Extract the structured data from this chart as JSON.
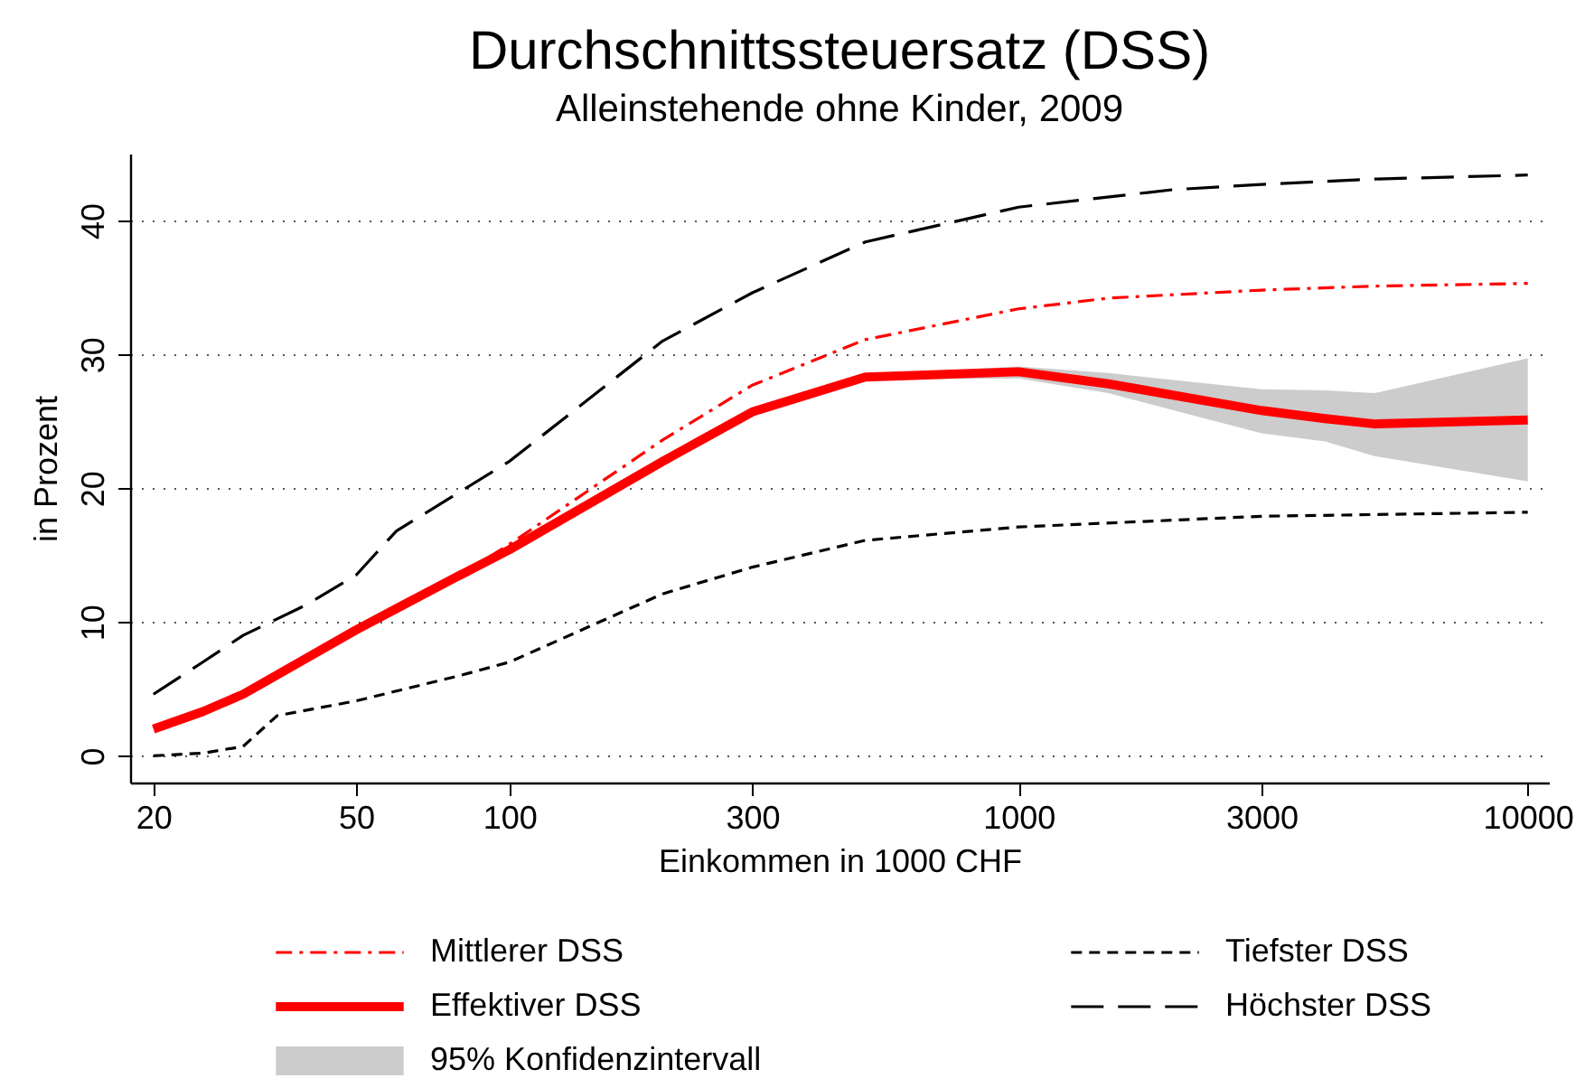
{
  "chart_data": {
    "type": "line",
    "title": "Durchschnittssteuersatz (DSS)",
    "subtitle": "Alleinstehende ohne Kinder, 2009",
    "xlabel": "Einkommen in 1000 CHF",
    "ylabel": "in Prozent",
    "log": "x",
    "xlim": [
      18,
      11000
    ],
    "xticks": [
      20,
      50,
      100,
      300,
      1000,
      3000,
      10000
    ],
    "ylim": [
      -2,
      45
    ],
    "yticks": [
      0,
      10,
      20,
      30,
      40
    ],
    "grid": "y",
    "legend": "bottom",
    "series": [
      {
        "name": "Mittlerer DSS",
        "color": "#ff0000",
        "line_style": "dashdot",
        "x": [
          80,
          100,
          200,
          300,
          500,
          1000,
          1500,
          3000,
          5000,
          10000
        ],
        "values": [
          13.5,
          15.8,
          23.6,
          27.7,
          31.1,
          33.4,
          34.2,
          34.8,
          35.1,
          35.3
        ]
      },
      {
        "name": "Tiefster DSS",
        "color": "#000000",
        "line_style": "dashed",
        "x": [
          20,
          25,
          30,
          35,
          50,
          80,
          100,
          200,
          300,
          500,
          1000,
          3000,
          10000
        ],
        "values": [
          0,
          0.2,
          0.7,
          3.0,
          4.1,
          6.0,
          7.0,
          12.1,
          14.1,
          16.1,
          17.1,
          17.9,
          18.2
        ]
      },
      {
        "name": "Effektiver DSS",
        "color": "#ff0000",
        "line_style": "solid",
        "x": [
          20,
          25,
          30,
          50,
          60,
          80,
          100,
          200,
          300,
          500,
          1000,
          1500,
          3000,
          4000,
          5000,
          10000
        ],
        "values": [
          2.0,
          3.3,
          4.6,
          9.4,
          11.0,
          13.5,
          15.4,
          22.0,
          25.7,
          28.3,
          28.7,
          27.8,
          25.8,
          25.2,
          24.8,
          25.1
        ]
      },
      {
        "name": "Höchster DSS",
        "color": "#000000",
        "line_style": "longdash",
        "x": [
          20,
          25,
          30,
          40,
          50,
          60,
          100,
          200,
          300,
          500,
          1000,
          2000,
          3000,
          5000,
          10000
        ],
        "values": [
          4.6,
          7.0,
          9.0,
          11.3,
          13.5,
          16.8,
          22.0,
          31.0,
          34.6,
          38.4,
          41.0,
          42.3,
          42.7,
          43.1,
          43.4
        ]
      },
      {
        "name": "95% Konfidenzintervall",
        "type": "area",
        "color": "#cccccc",
        "x": [
          500,
          1000,
          1500,
          3000,
          4000,
          5000,
          10000
        ],
        "values": [
          null,
          null,
          null,
          null,
          null,
          null,
          null
        ],
        "lower": [
          28.1,
          28.2,
          27.1,
          24.1,
          23.5,
          22.4,
          20.5
        ],
        "upper": [
          28.5,
          29.1,
          28.6,
          27.4,
          27.3,
          27.1,
          29.7
        ]
      }
    ]
  }
}
